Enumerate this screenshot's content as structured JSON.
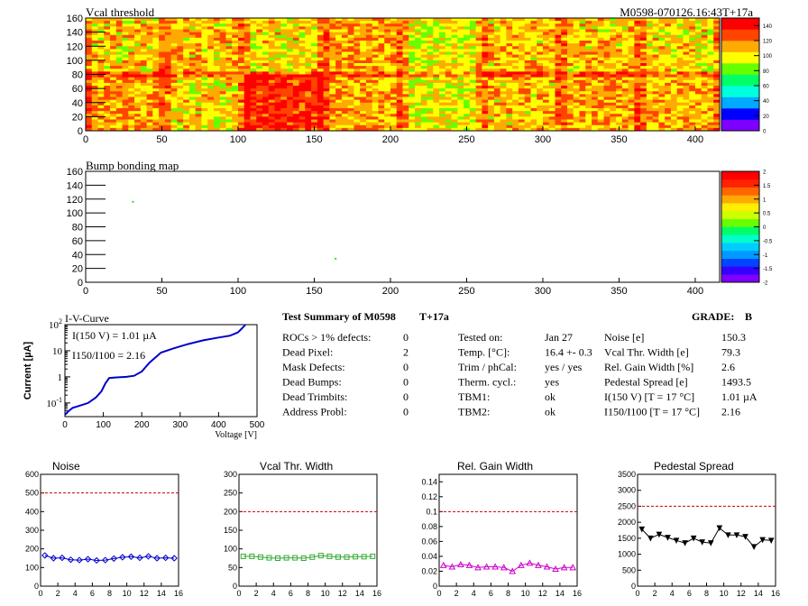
{
  "header": {
    "vcal_title": "Vcal threshold",
    "module_id": "M0598-070126.16:43T+17a",
    "bump_title": "Bump bonding map"
  },
  "summary": {
    "title": "Test Summary of M0598",
    "temp_tag": "T+17a",
    "grade_label": "GRADE:",
    "grade": "B",
    "col1": [
      {
        "label": "ROCs > 1% defects:",
        "value": "0"
      },
      {
        "label": "Dead Pixel:",
        "value": "2"
      },
      {
        "label": "Mask Defects:",
        "value": "0"
      },
      {
        "label": "Dead Bumps:",
        "value": "0"
      },
      {
        "label": "Dead Trimbits:",
        "value": "0"
      },
      {
        "label": "Address Probl:",
        "value": "0"
      }
    ],
    "col2": [
      {
        "label": "Tested on:",
        "value": "Jan 27"
      },
      {
        "label": "Temp. [°C]:",
        "value": "16.4 +- 0.3"
      },
      {
        "label": "Trim / phCal:",
        "value": "yes / yes"
      },
      {
        "label": "Therm. cycl.:",
        "value": "yes"
      },
      {
        "label": "TBM1:",
        "value": "ok"
      },
      {
        "label": "TBM2:",
        "value": "ok"
      }
    ],
    "col3": [
      {
        "label": "Noise [e]",
        "value": "150.3"
      },
      {
        "label": "Vcal Thr. Width [e]",
        "value": "79.3"
      },
      {
        "label": "Rel. Gain Width [%]",
        "value": "2.6"
      },
      {
        "label": "Pedestal Spread [e]",
        "value": "1493.5"
      },
      {
        "label": "I(150 V) [T = 17 °C]",
        "value": "1.01 µA"
      },
      {
        "label": "I150/I100 [T = 17 °C]",
        "value": "2.16"
      }
    ]
  },
  "chart_data": [
    {
      "type": "heatmap",
      "title": "Vcal threshold",
      "xlim": [
        0,
        416
      ],
      "ylim": [
        0,
        160
      ],
      "xticks": [
        0,
        50,
        100,
        150,
        200,
        250,
        300,
        350,
        400
      ],
      "yticks": [
        0,
        20,
        40,
        60,
        80,
        100,
        120,
        140,
        160
      ],
      "colorbar_ticks": [
        0,
        20,
        40,
        60,
        80,
        100,
        120,
        140
      ],
      "color_scale": [
        "#7f00ff",
        "#0000ff",
        "#00aaff",
        "#00ffdd",
        "#00ff66",
        "#66ff00",
        "#ffff00",
        "#ffaa00",
        "#ff4400",
        "#ff0000"
      ],
      "roc_means_top": [
        105,
        108,
        103,
        112,
        98,
        108,
        107,
        103
      ],
      "roc_means_bottom": [
        114,
        104,
        134,
        110,
        98,
        108,
        112,
        110
      ]
    },
    {
      "type": "heatmap",
      "title": "Bump bonding map",
      "xlim": [
        0,
        416
      ],
      "ylim": [
        0,
        160
      ],
      "xticks": [
        0,
        50,
        100,
        150,
        200,
        250,
        300,
        350,
        400
      ],
      "yticks": [
        0,
        20,
        40,
        60,
        80,
        100,
        120,
        140,
        160
      ],
      "colorbar_ticks": [
        "-2",
        "-1.5",
        "-1",
        "-0.5",
        "0",
        "0.5",
        "1",
        "1.5",
        "2"
      ],
      "points": [
        {
          "x": 31,
          "y": 116
        },
        {
          "x": 164,
          "y": 34
        }
      ]
    },
    {
      "type": "line",
      "title": "I-V-Curve",
      "xlabel": "Voltage [V]",
      "ylabel": "Current [µA]",
      "yscale": "log",
      "xlim": [
        0,
        500
      ],
      "ylim": [
        0.03,
        100
      ],
      "xticks": [
        0,
        100,
        200,
        300,
        400,
        500
      ],
      "yticks": [
        {
          "v": 0.1,
          "label": "10^-1"
        },
        {
          "v": 1,
          "label": "1"
        },
        {
          "v": 10,
          "label": "10"
        },
        {
          "v": 100,
          "label": "10^2"
        }
      ],
      "annotations": [
        "I(150 V) = 1.01 µA",
        "I150/I100 = 2.16"
      ],
      "x": [
        0,
        10,
        20,
        40,
        60,
        80,
        95,
        105,
        115,
        130,
        160,
        180,
        200,
        220,
        250,
        280,
        320,
        360,
        400,
        430,
        450,
        460,
        470
      ],
      "y": [
        0.035,
        0.05,
        0.065,
        0.08,
        0.1,
        0.16,
        0.28,
        0.55,
        0.9,
        0.95,
        1.0,
        1.1,
        1.6,
        3.5,
        8.5,
        12,
        18,
        25,
        32,
        38,
        50,
        70,
        110
      ]
    },
    {
      "type": "line",
      "title": "Noise",
      "xlim": [
        0,
        16
      ],
      "ylim": [
        0,
        600
      ],
      "xticks": [
        0,
        2,
        4,
        6,
        8,
        10,
        12,
        14,
        16
      ],
      "yticks": [
        0,
        100,
        200,
        300,
        400,
        500,
        600
      ],
      "threshold": 500,
      "x": [
        0.5,
        1.5,
        2.5,
        3.5,
        4.5,
        5.5,
        6.5,
        7.5,
        8.5,
        9.5,
        10.5,
        11.5,
        12.5,
        13.5,
        14.5,
        15.5
      ],
      "y": [
        165,
        150,
        152,
        142,
        140,
        145,
        138,
        140,
        148,
        155,
        158,
        152,
        160,
        150,
        152,
        150
      ],
      "color": "#0000cc"
    },
    {
      "type": "line",
      "title": "Vcal Thr. Width",
      "xlim": [
        0,
        16
      ],
      "ylim": [
        0,
        300
      ],
      "xticks": [
        0,
        2,
        4,
        6,
        8,
        10,
        12,
        14,
        16
      ],
      "yticks": [
        0,
        50,
        100,
        150,
        200,
        250,
        300
      ],
      "threshold": 200,
      "x": [
        0.5,
        1.5,
        2.5,
        3.5,
        4.5,
        5.5,
        6.5,
        7.5,
        8.5,
        9.5,
        10.5,
        11.5,
        12.5,
        13.5,
        14.5,
        15.5
      ],
      "y": [
        80,
        80,
        78,
        76,
        75,
        76,
        76,
        75,
        78,
        82,
        80,
        78,
        78,
        79,
        79,
        80
      ],
      "color": "#33aa33"
    },
    {
      "type": "line",
      "title": "Rel. Gain Width",
      "xlim": [
        0,
        16
      ],
      "ylim": [
        0,
        0.15
      ],
      "xticks": [
        0,
        2,
        4,
        6,
        8,
        10,
        12,
        14,
        16
      ],
      "yticks": [
        0,
        0.02,
        0.04,
        0.06,
        0.08,
        0.1,
        0.12,
        0.14
      ],
      "threshold": 0.1,
      "x": [
        0.5,
        1.5,
        2.5,
        3.5,
        4.5,
        5.5,
        6.5,
        7.5,
        8.5,
        9.5,
        10.5,
        11.5,
        12.5,
        13.5,
        14.5,
        15.5
      ],
      "y": [
        0.028,
        0.026,
        0.029,
        0.028,
        0.025,
        0.026,
        0.026,
        0.025,
        0.02,
        0.028,
        0.031,
        0.028,
        0.026,
        0.023,
        0.025,
        0.025
      ],
      "color": "#cc00cc"
    },
    {
      "type": "line",
      "title": "Pedestal Spread",
      "xlim": [
        0,
        16
      ],
      "ylim": [
        0,
        3500
      ],
      "xticks": [
        0,
        2,
        4,
        6,
        8,
        10,
        12,
        14,
        16
      ],
      "yticks": [
        0,
        500,
        1000,
        1500,
        2000,
        2500,
        3000,
        3500
      ],
      "threshold": 2500,
      "x": [
        0.5,
        1.5,
        2.5,
        3.5,
        4.5,
        5.5,
        6.5,
        7.5,
        8.5,
        9.5,
        10.5,
        11.5,
        12.5,
        13.5,
        14.5,
        15.5
      ],
      "y": [
        1780,
        1500,
        1620,
        1520,
        1430,
        1350,
        1500,
        1380,
        1350,
        1820,
        1600,
        1600,
        1550,
        1230,
        1450,
        1430
      ],
      "color": "#000000"
    }
  ]
}
